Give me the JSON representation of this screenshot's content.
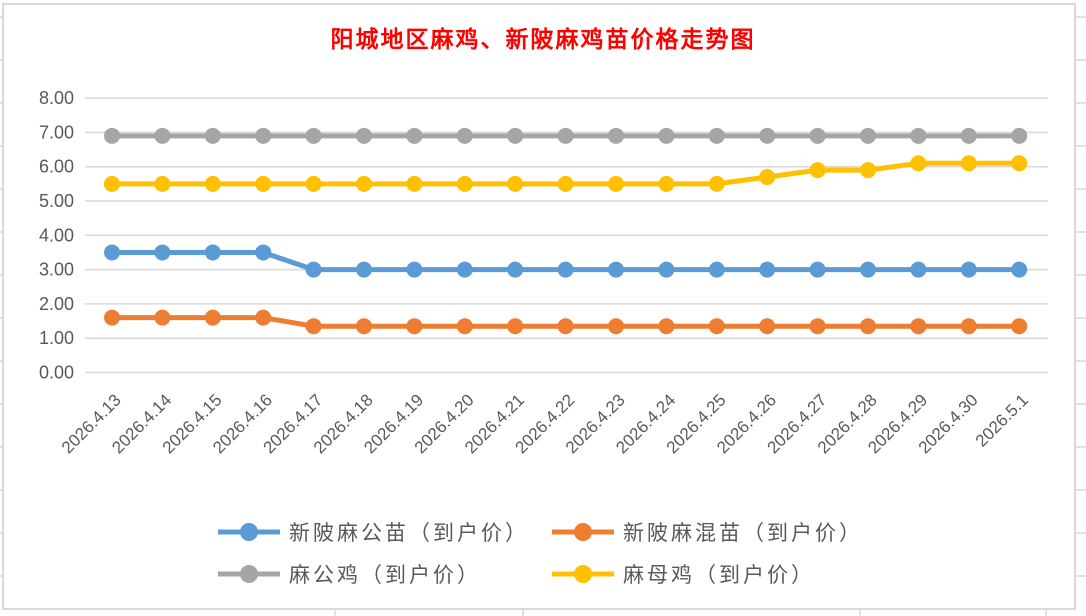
{
  "chart_data": {
    "type": "line",
    "title": "阳城地区麻鸡、新陂麻鸡苗价格走势图",
    "title_color": "#ff0000",
    "categories": [
      "2026.4.13",
      "2026.4.14",
      "2026.4.15",
      "2026.4.16",
      "2026.4.17",
      "2026.4.18",
      "2026.4.19",
      "2026.4.20",
      "2026.4.21",
      "2026.4.22",
      "2026.4.23",
      "2026.4.24",
      "2026.4.25",
      "2026.4.26",
      "2026.4.27",
      "2026.4.28",
      "2026.4.29",
      "2026.4.30",
      "2026.5.1"
    ],
    "series": [
      {
        "name": "新陂麻公苗（到户价）",
        "color": "#5B9BD5",
        "marker": "circle",
        "values": [
          3.5,
          3.5,
          3.5,
          3.5,
          3.0,
          3.0,
          3.0,
          3.0,
          3.0,
          3.0,
          3.0,
          3.0,
          3.0,
          3.0,
          3.0,
          3.0,
          3.0,
          3.0,
          3.0
        ]
      },
      {
        "name": "新陂麻混苗（到户价）",
        "color": "#ED7D31",
        "marker": "circle",
        "values": [
          1.6,
          1.6,
          1.6,
          1.6,
          1.35,
          1.35,
          1.35,
          1.35,
          1.35,
          1.35,
          1.35,
          1.35,
          1.35,
          1.35,
          1.35,
          1.35,
          1.35,
          1.35,
          1.35
        ]
      },
      {
        "name": "麻公鸡（到户价）",
        "color": "#A5A5A5",
        "marker": "circle",
        "values": [
          6.9,
          6.9,
          6.9,
          6.9,
          6.9,
          6.9,
          6.9,
          6.9,
          6.9,
          6.9,
          6.9,
          6.9,
          6.9,
          6.9,
          6.9,
          6.9,
          6.9,
          6.9,
          6.9
        ]
      },
      {
        "name": "麻母鸡（到户价）",
        "color": "#FFC000",
        "marker": "circle",
        "values": [
          5.5,
          5.5,
          5.5,
          5.5,
          5.5,
          5.5,
          5.5,
          5.5,
          5.5,
          5.5,
          5.5,
          5.5,
          5.5,
          5.7,
          5.9,
          5.9,
          6.1,
          6.1,
          6.1
        ]
      }
    ],
    "xlabel": "",
    "ylabel": "",
    "ylim": [
      0,
      8
    ],
    "ytick_labels": [
      "0.00",
      "1.00",
      "2.00",
      "3.00",
      "4.00",
      "5.00",
      "6.00",
      "7.00",
      "8.00"
    ],
    "grid": "horizontal",
    "gridline_color": "#d9d9d9",
    "axis_label_color": "#595959",
    "legend_position": "bottom",
    "legend_rows": [
      [
        0,
        1
      ],
      [
        2,
        3
      ]
    ]
  }
}
